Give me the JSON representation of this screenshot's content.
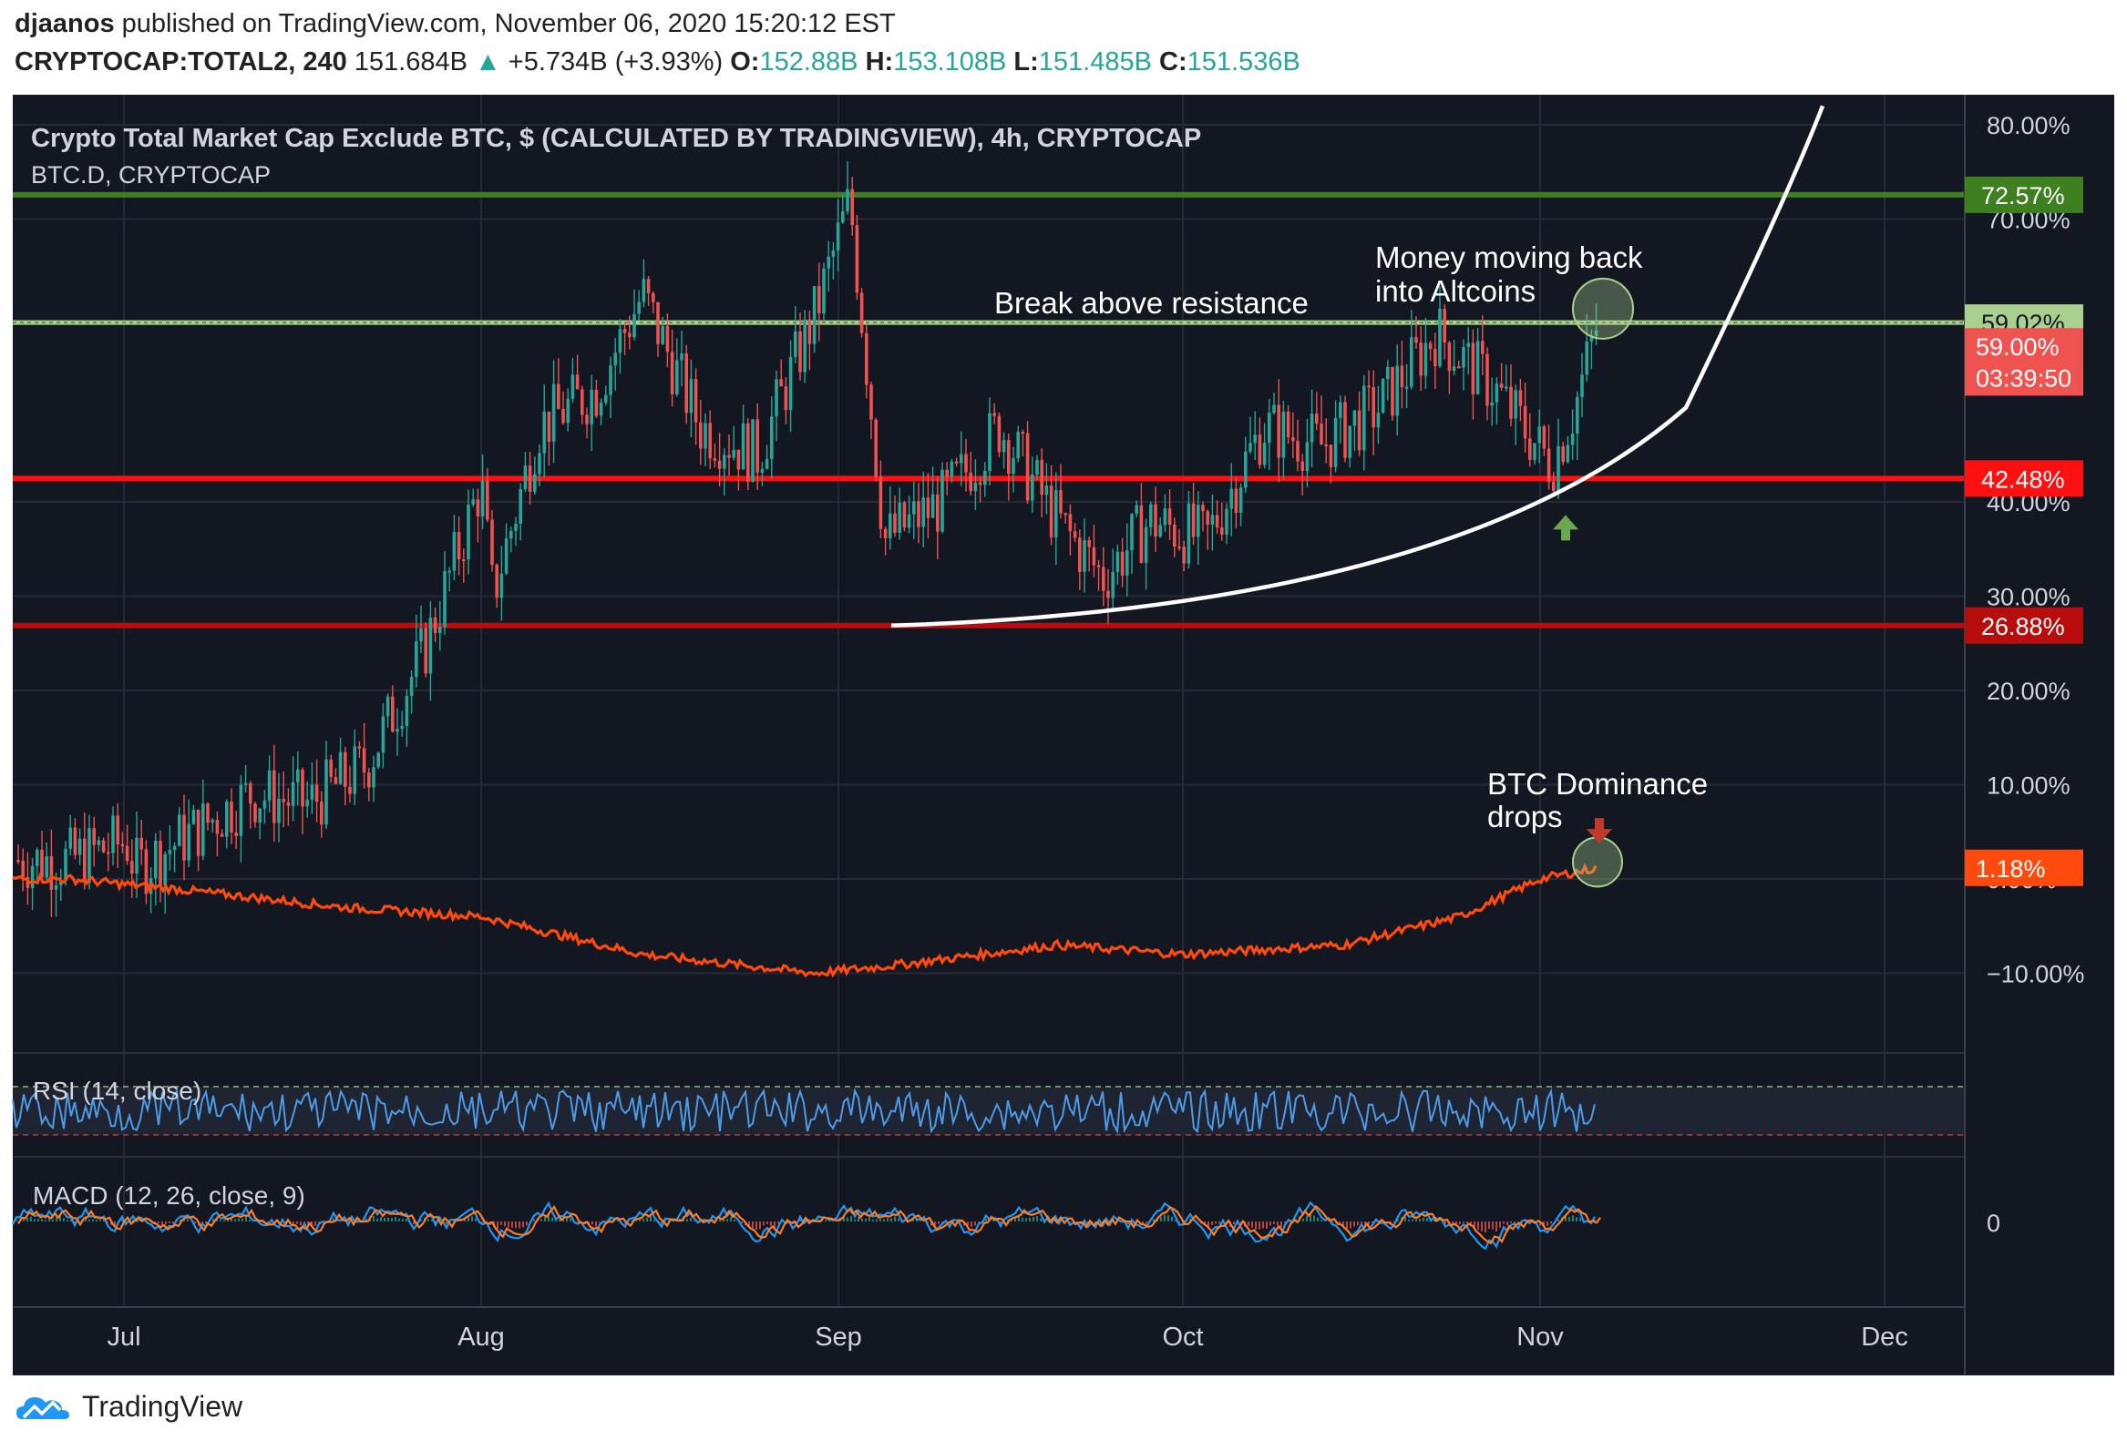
{
  "header": {
    "author": "djaanos",
    "published_text": "published on TradingView.com, November 06, 2020 15:20:12 EST",
    "symbol": "CRYPTOCAP:TOTAL2, 240",
    "last": "151.684B",
    "change": "+5.734B (+3.93%)",
    "open_label": "O:",
    "open": "152.88B",
    "high_label": "H:",
    "high": "153.108B",
    "low_label": "L:",
    "low": "151.485B",
    "close_label": "C:",
    "close": "151.536B"
  },
  "footer": {
    "brand": "TradingView"
  },
  "colors": {
    "background": "#131722",
    "up": "#26a69a",
    "down": "#ef5350",
    "dominance": "#ff4a0d",
    "green_line": "#3e7f1f",
    "red_line": "#ff1010",
    "dark_red_line": "#b80d0d",
    "rsi": "#4d9be6",
    "macd": "#2196f3",
    "signal": "#ff7c1f"
  },
  "chart_data": {
    "type": "candlestick",
    "title": "Crypto Total Market Cap Exclude BTC, $ (CALCULATED BY TRADINGVIEW), 4h, CRYPTOCAP",
    "overlay_label": "BTC.D, CRYPTOCAP",
    "x_ticks": [
      "Jul",
      "Aug",
      "Sep",
      "Oct",
      "Nov",
      "Dec"
    ],
    "y_ticks": [
      "80.00%",
      "70.00%",
      "40.00%",
      "30.00%",
      "20.00%",
      "10.00%",
      "0.00%",
      "−10.00%"
    ],
    "axis_unit": "% change (percent scale)",
    "horizontal_levels": [
      {
        "label": "72.57%",
        "value": 72.57,
        "color": "#3e7f1f"
      },
      {
        "label": "59.02%",
        "value": 59.02,
        "color": "#a9d08e"
      },
      {
        "label": "42.48%",
        "value": 42.48,
        "color": "#ff1010"
      },
      {
        "label": "26.88%",
        "value": 26.88,
        "color": "#b80d0d"
      }
    ],
    "price_tags": [
      {
        "label": "59.00%",
        "color": "#ef5350"
      },
      {
        "label": "03:39:50",
        "color": "#ef5350"
      },
      {
        "label": "1.18%",
        "color": "#ff4a0d"
      }
    ],
    "series": [
      {
        "name": "TOTAL2",
        "kind": "candles",
        "x": [
          "Jun 22",
          "Jun 27",
          "Jul 02",
          "Jul 07",
          "Jul 12",
          "Jul 17",
          "Jul 22",
          "Jul 27",
          "Aug 01",
          "Aug 02",
          "Aug 06",
          "Aug 11",
          "Aug 15",
          "Aug 20",
          "Aug 25",
          "Aug 30",
          "Sep 02",
          "Sep 05",
          "Sep 10",
          "Sep 15",
          "Sep 20",
          "Sep 24",
          "Sep 28",
          "Oct 03",
          "Oct 08",
          "Oct 13",
          "Oct 18",
          "Oct 23",
          "Oct 28",
          "Nov 02",
          "Nov 04",
          "Nov 06"
        ],
        "values": [
          2,
          4,
          1,
          5,
          9,
          8,
          12,
          24,
          42,
          30,
          48,
          52,
          62,
          48,
          45,
          60,
          72,
          36,
          40,
          48,
          38,
          32,
          38,
          36,
          48,
          46,
          50,
          58,
          52,
          44,
          50,
          59
        ]
      },
      {
        "name": "BTC.D",
        "kind": "line",
        "x": [
          "Jun 22",
          "Jul 05",
          "Jul 20",
          "Aug 01",
          "Aug 15",
          "Aug 30",
          "Sep 07",
          "Sep 20",
          "Oct 01",
          "Oct 15",
          "Oct 25",
          "Nov 01",
          "Nov 06"
        ],
        "values": [
          0,
          -1,
          -3,
          -4,
          -8,
          -10,
          -9,
          -7,
          -8,
          -7,
          -4,
          0,
          1.18
        ]
      }
    ],
    "annotations": [
      {
        "text": "Break above resistance"
      },
      {
        "text_lines": [
          "Money moving back",
          "into Altcoins"
        ]
      },
      {
        "text_lines": [
          "BTC Dominance",
          "drops"
        ]
      }
    ],
    "indicators": [
      {
        "label": "RSI (14, close)"
      },
      {
        "label": "MACD (12, 26, close, 9)",
        "zero_label": "0"
      }
    ]
  }
}
